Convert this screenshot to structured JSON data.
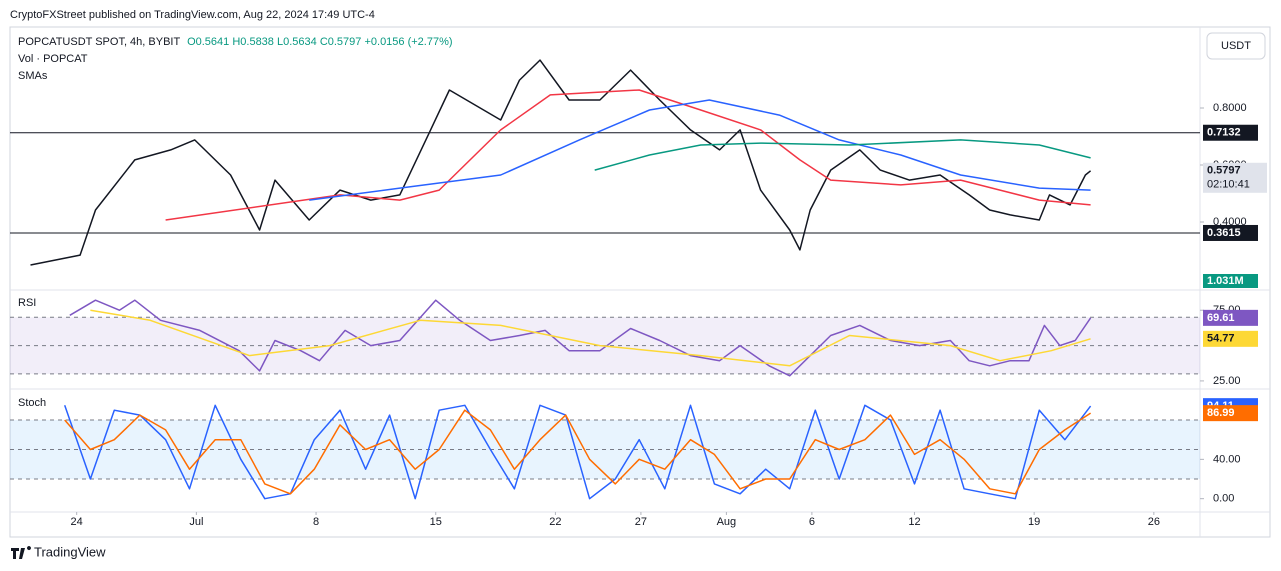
{
  "header": {
    "publisher": "CryptoFXStreet published on TradingView.com, Aug 22, 2024 17:49 UTC-4",
    "brand": "TradingView",
    "currency_button": "USDT"
  },
  "chart_data": [
    {
      "type": "line",
      "legend": {
        "symbol": "POPCATUSDT SPOT, 4h, BYBIT",
        "open": "O0.5641",
        "high": "H0.5838",
        "low": "L0.5634",
        "close": "C0.5797",
        "change": "+0.0156 (+2.77%)",
        "volume": "Vol · POPCAT",
        "indicator": "SMAs"
      },
      "countdown": "02:10:41",
      "volume_label": "1.031M",
      "xlim": [
        20.1,
        89.7
      ],
      "ylim": [
        0.1684,
        1.0737
      ],
      "yticks": [
        {
          "value": 0.4,
          "label": "0.4000"
        },
        {
          "value": 0.6,
          "label": "0.6000"
        },
        {
          "value": 0.8,
          "label": "0.8000"
        }
      ],
      "hlines": [
        0.7132,
        0.3615
      ],
      "series": [
        {
          "color": "#131722",
          "price_label": true,
          "x": [
            21.3,
            24.2,
            25.1,
            27.4,
            29.5,
            30.9,
            33.0,
            34.7,
            35.6,
            37.6,
            39.4,
            41.2,
            42.9,
            44.7,
            45.8,
            48.8,
            49.9,
            51.1,
            52.8,
            54.6,
            56.4,
            58.1,
            59.9,
            61.6,
            62.8,
            64.0,
            65.7,
            66.3,
            66.9,
            68.1,
            69.8,
            71.0,
            72.7,
            74.5,
            76.2,
            77.4,
            78.6,
            80.3,
            80.9,
            82.1,
            83.0,
            83.3
          ],
          "values": [
            0.249,
            0.284,
            0.442,
            0.618,
            0.653,
            0.688,
            0.565,
            0.372,
            0.547,
            0.407,
            0.512,
            0.477,
            0.495,
            0.723,
            0.863,
            0.758,
            0.898,
            0.968,
            0.828,
            0.828,
            0.933,
            0.828,
            0.723,
            0.653,
            0.723,
            0.512,
            0.372,
            0.302,
            0.442,
            0.582,
            0.653,
            0.582,
            0.547,
            0.565,
            0.495,
            0.442,
            0.425,
            0.407,
            0.495,
            0.46,
            0.565,
            0.5797
          ]
        },
        {
          "color": "#f23645",
          "x": [
            29.2,
            39.4,
            42.9,
            45.2,
            48.8,
            51.7,
            56.9,
            60.5,
            64.0,
            66.3,
            68.1,
            72.2,
            75.7,
            78.0,
            80.3,
            83.3
          ],
          "values": [
            0.407,
            0.495,
            0.477,
            0.512,
            0.723,
            0.846,
            0.863,
            0.793,
            0.723,
            0.618,
            0.547,
            0.53,
            0.547,
            0.512,
            0.477,
            0.46
          ]
        },
        {
          "color": "#2962ff",
          "x": [
            37.6,
            42.9,
            48.8,
            53.4,
            57.5,
            61.0,
            65.1,
            68.6,
            72.2,
            75.7,
            80.3,
            83.3
          ],
          "values": [
            0.477,
            0.519,
            0.565,
            0.688,
            0.793,
            0.828,
            0.775,
            0.688,
            0.635,
            0.565,
            0.519,
            0.512
          ]
        },
        {
          "color": "#089981",
          "x": [
            54.3,
            57.5,
            60.5,
            64.0,
            69.2,
            75.7,
            80.3,
            83.3
          ],
          "values": [
            0.582,
            0.635,
            0.67,
            0.677,
            0.67,
            0.688,
            0.67,
            0.625
          ]
        }
      ]
    },
    {
      "type": "line",
      "title": "RSI",
      "xlim": [
        20.1,
        89.7
      ],
      "ylim": [
        21.4,
        87.9
      ],
      "yticks": [
        {
          "value": 25,
          "label": "25.00"
        },
        {
          "value": 75,
          "label": "75.00"
        }
      ],
      "band": [
        30,
        70
      ],
      "band_color": "#7e57c2",
      "levels": [
        70,
        50,
        30
      ],
      "series": [
        {
          "color": "#7e57c2",
          "price_label": true,
          "x": [
            23.6,
            25.1,
            26.5,
            27.4,
            28.9,
            31.2,
            33.5,
            34.7,
            35.6,
            37.1,
            38.2,
            39.7,
            41.2,
            42.9,
            45.0,
            46.4,
            48.2,
            49.9,
            51.4,
            52.8,
            54.6,
            56.4,
            58.1,
            59.9,
            61.6,
            62.8,
            64.5,
            65.7,
            66.9,
            68.1,
            69.8,
            71.6,
            73.3,
            75.1,
            76.2,
            77.4,
            78.6,
            79.7,
            80.6,
            81.5,
            82.4,
            83.3
          ],
          "values": [
            71.4,
            82.1,
            75,
            82.1,
            67.9,
            60.7,
            46.4,
            32.1,
            53.6,
            46.4,
            39.3,
            60.7,
            50,
            53.6,
            82.1,
            67.9,
            53.6,
            57.1,
            60.7,
            46.4,
            46.4,
            62.1,
            53.6,
            42.9,
            39.3,
            50,
            35.7,
            28.6,
            42.9,
            57.1,
            64.3,
            53.6,
            50,
            53.6,
            39.3,
            35.7,
            39.3,
            39.3,
            64.3,
            50,
            53.6,
            69.61
          ]
        },
        {
          "color": "#fdd835",
          "price_label": true,
          "x": [
            24.8,
            28.3,
            34.1,
            38.8,
            44.1,
            48.8,
            54.6,
            60.5,
            65.7,
            69.2,
            75.1,
            78.0,
            81.0,
            83.3
          ],
          "values": [
            75,
            67.9,
            42.9,
            50,
            67.9,
            64.3,
            50,
            42.9,
            35.7,
            57.1,
            50,
            39.3,
            46.4,
            54.77
          ]
        }
      ]
    },
    {
      "type": "line",
      "title": "Stoch",
      "xlim": [
        20.1,
        89.7
      ],
      "ylim": [
        -10.5,
        108.5
      ],
      "yticks": [
        {
          "value": 0,
          "label": "0.00"
        },
        {
          "value": 40,
          "label": "40.00"
        }
      ],
      "band": [
        20,
        80
      ],
      "band_color": "#2196f3",
      "levels": [
        80,
        50,
        20
      ],
      "xticks": [
        24,
        {
          "value": 31,
          "label": "Jul"
        },
        {
          "value": 38,
          "label": "8"
        },
        {
          "value": 45,
          "label": "15"
        },
        {
          "value": 52,
          "label": "22"
        },
        {
          "value": 57,
          "label": "27"
        },
        {
          "value": 62,
          "label": "Aug"
        },
        {
          "value": 67,
          "label": "6"
        },
        {
          "value": 73,
          "label": "12"
        },
        {
          "value": 80,
          "label": "19"
        },
        {
          "value": 87,
          "label": "26"
        }
      ],
      "series": [
        {
          "color": "#2962ff",
          "price_label": true,
          "x": [
            23.3,
            24.8,
            26.2,
            27.7,
            29.2,
            30.6,
            32.1,
            33.6,
            35.0,
            36.5,
            37.9,
            39.4,
            40.9,
            42.3,
            43.8,
            45.2,
            46.7,
            48.2,
            49.6,
            51.1,
            52.6,
            54.0,
            55.5,
            56.9,
            58.4,
            59.9,
            61.3,
            62.8,
            64.3,
            65.7,
            67.2,
            68.6,
            70.1,
            71.6,
            73.0,
            74.5,
            75.9,
            77.4,
            78.9,
            80.3,
            81.8,
            83.3
          ],
          "values": [
            95,
            20,
            90,
            85,
            60,
            10,
            95,
            40,
            0,
            5,
            60,
            90,
            30,
            85,
            0,
            90,
            95,
            50,
            10,
            95,
            85,
            0,
            20,
            60,
            10,
            95,
            15,
            5,
            30,
            10,
            90,
            20,
            95,
            80,
            15,
            90,
            10,
            5,
            0,
            90,
            60,
            94.11
          ]
        },
        {
          "color": "#ff6d00",
          "price_label": true,
          "x": [
            23.3,
            24.8,
            26.2,
            27.7,
            29.2,
            30.6,
            32.1,
            33.6,
            35.0,
            36.5,
            37.9,
            39.4,
            40.9,
            42.3,
            43.8,
            45.2,
            46.7,
            48.2,
            49.6,
            51.1,
            52.6,
            54.0,
            55.5,
            56.9,
            58.4,
            59.9,
            61.3,
            62.8,
            64.3,
            65.7,
            67.2,
            68.6,
            70.1,
            71.6,
            73.0,
            74.5,
            75.9,
            77.4,
            78.9,
            80.3,
            81.8,
            83.3
          ],
          "values": [
            80,
            50,
            60,
            85,
            70,
            30,
            60,
            60,
            15,
            5,
            30,
            75,
            50,
            60,
            30,
            50,
            90,
            70,
            30,
            60,
            85,
            40,
            15,
            40,
            30,
            60,
            45,
            10,
            20,
            20,
            60,
            50,
            60,
            85,
            45,
            60,
            40,
            10,
            5,
            50,
            70,
            86.99
          ]
        }
      ]
    }
  ]
}
